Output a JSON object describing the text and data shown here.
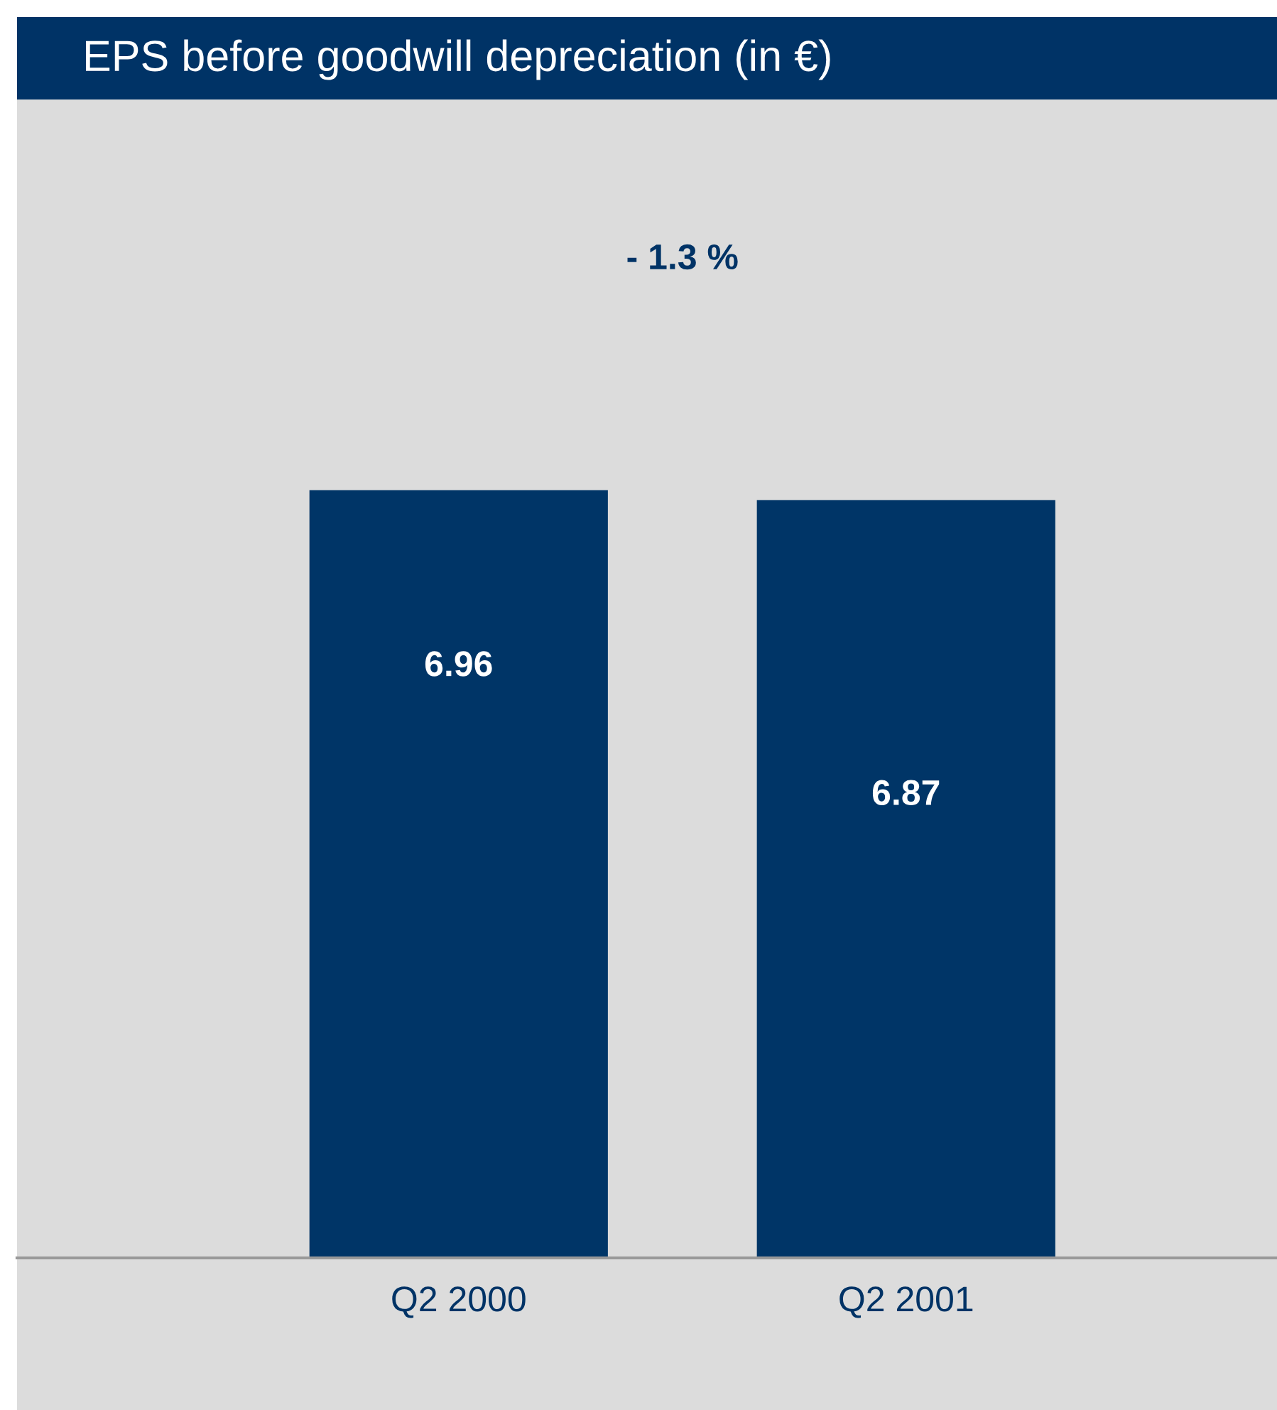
{
  "chart_data": {
    "type": "bar",
    "title": "EPS before goodwill depreciation (in €)",
    "categories": [
      "Q2 2000",
      "Q2 2001"
    ],
    "values": [
      6.96,
      6.87
    ],
    "color": "#003567",
    "data_labels": true,
    "value_labels": [
      "6.96",
      "6.87"
    ],
    "annotations": [
      "- 1.3 %"
    ],
    "grid": false,
    "legend": false,
    "tick_labels": "x"
  }
}
